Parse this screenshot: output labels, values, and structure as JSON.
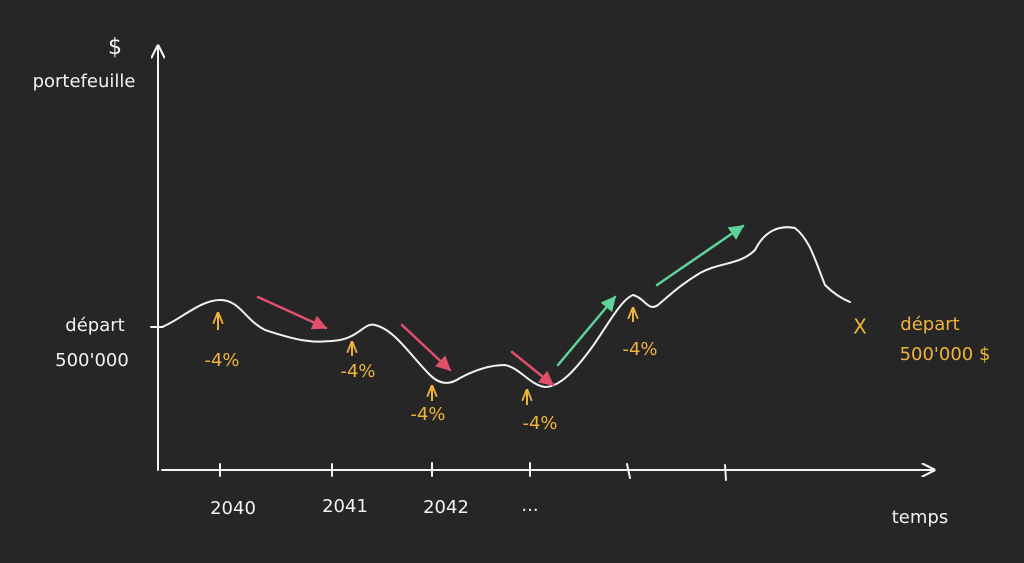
{
  "axis": {
    "y_symbol": "$",
    "y_label": "portefeuille",
    "x_label": "temps",
    "x_ticks": [
      "2040",
      "2041",
      "2042",
      "..."
    ]
  },
  "start": {
    "label": "départ",
    "value": "500'000"
  },
  "withdrawals": [
    "-4%",
    "-4%",
    "-4%",
    "-4%",
    "-4%"
  ],
  "end": {
    "marker": "X",
    "label": "départ",
    "value": "500'000 $"
  }
}
